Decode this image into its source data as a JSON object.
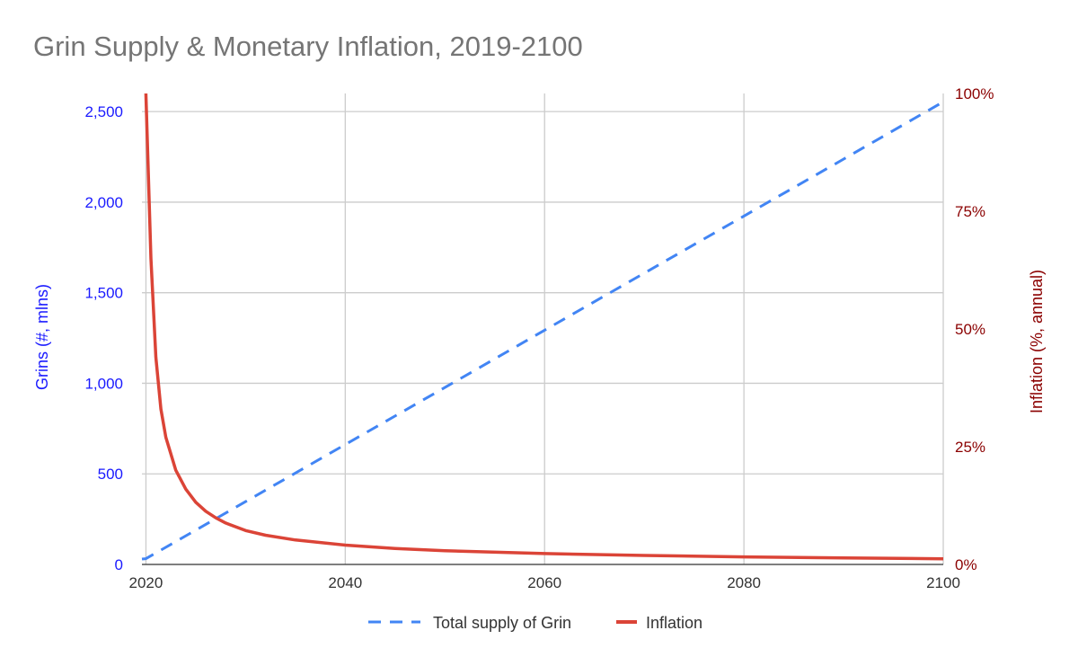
{
  "chart_data": {
    "type": "line",
    "title": "Grin Supply & Monetary Inflation, 2019-2100",
    "x_ticks": [
      "2020",
      "2040",
      "2060",
      "2080",
      "2100"
    ],
    "x_range": [
      2019.6,
      2100
    ],
    "y_left": {
      "label": "Grins (#, mlns)",
      "range": [
        0,
        2600
      ],
      "ticks": [
        {
          "value": 0,
          "label": "0"
        },
        {
          "value": 500,
          "label": "500"
        },
        {
          "value": 1000,
          "label": "1,000"
        },
        {
          "value": 1500,
          "label": "1,500"
        },
        {
          "value": 2000,
          "label": "2,000"
        },
        {
          "value": 2500,
          "label": "2,500"
        }
      ]
    },
    "y_right": {
      "label": "Inflation (%, annual)",
      "range": [
        0,
        100
      ],
      "ticks": [
        {
          "value": 0,
          "label": "0%"
        },
        {
          "value": 25,
          "label": "25%"
        },
        {
          "value": 50,
          "label": "50%"
        },
        {
          "value": 75,
          "label": "75%"
        },
        {
          "value": 100,
          "label": "100%"
        }
      ]
    },
    "grid": true,
    "legend_position": "bottom",
    "series": [
      {
        "name": "Total supply of Grin",
        "axis": "left",
        "color": "#4285f4",
        "dash": true,
        "x": [
          2019.6,
          2020,
          2030,
          2040,
          2050,
          2060,
          2070,
          2080,
          2090,
          2100
        ],
        "y": [
          30,
          32,
          347,
          662,
          977,
          1293,
          1608,
          1923,
          2238,
          2554
        ]
      },
      {
        "name": "Inflation",
        "axis": "right",
        "color": "#db4437",
        "dash": false,
        "x": [
          2020,
          2020.5,
          2021,
          2021.5,
          2022,
          2023,
          2024,
          2025,
          2026,
          2027,
          2028,
          2030,
          2032,
          2035,
          2040,
          2045,
          2050,
          2060,
          2070,
          2080,
          2090,
          2100
        ],
        "y": [
          100,
          65,
          44,
          33,
          27,
          20,
          16,
          13.2,
          11.3,
          9.9,
          8.8,
          7.2,
          6.2,
          5.2,
          4.1,
          3.4,
          2.9,
          2.3,
          1.9,
          1.6,
          1.4,
          1.2
        ]
      }
    ]
  }
}
